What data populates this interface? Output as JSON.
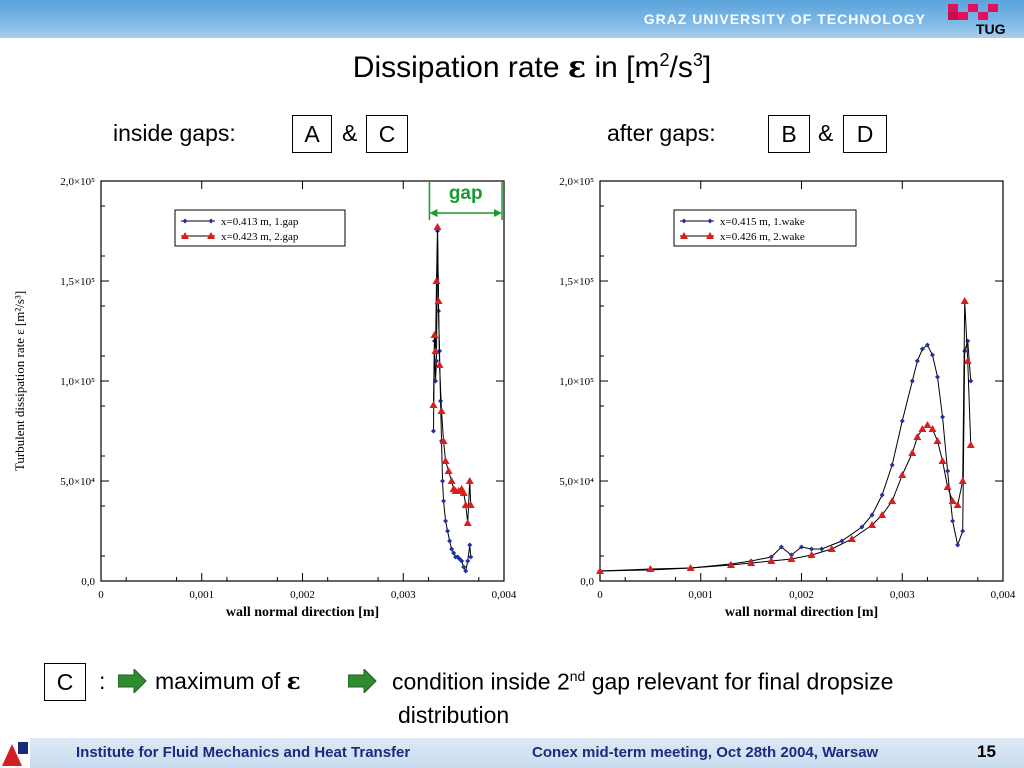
{
  "header": {
    "university": "GRAZ UNIVERSITY OF TECHNOLOGY",
    "logo_text": "TUG"
  },
  "title": {
    "prefix": "Dissipation rate ",
    "symbol": "ε",
    "mid": " in [m",
    "sup1": "2",
    "mid2": "/s",
    "sup2": "3",
    "suffix": "]"
  },
  "labels": {
    "inside_gaps": "inside gaps:",
    "after_gaps": "after gaps:",
    "box_a": "A",
    "box_b": "B",
    "box_c": "C",
    "box_d": "D",
    "amp": "&",
    "gap_annotation": "gap"
  },
  "colors": {
    "header": "#5aa3dc",
    "series_blue": "#1f2fa8",
    "series_red": "#dd1c1c",
    "gap_green": "#1a9a2e",
    "arrow_green": "#2e8b2e",
    "footer_text": "#1a2a7c"
  },
  "chart_data": [
    {
      "type": "line",
      "title": "",
      "xlabel": "wall normal direction [m]",
      "ylabel": "Turbulent dissipation rate  ε  [m²/s³]",
      "xlim": [
        0,
        0.004
      ],
      "ylim": [
        0,
        200000
      ],
      "xticks": [
        "0",
        "0,001",
        "0,002",
        "0,003",
        "0,004"
      ],
      "yticks": [
        "0,0",
        "5,0×10⁴",
        "1,0×10⁵",
        "1,5×10⁵",
        "2,0×10⁵"
      ],
      "legend_position": "top-left",
      "series": [
        {
          "name": "x=0.413 m, 1.gap",
          "color": "#1f2fa8",
          "marker": "diamond",
          "x": [
            0.0033,
            0.00331,
            0.00332,
            0.00333,
            0.00334,
            0.00335,
            0.00336,
            0.00337,
            0.00338,
            0.00339,
            0.0034,
            0.00342,
            0.00344,
            0.00346,
            0.00348,
            0.0035,
            0.00352,
            0.00354,
            0.00356,
            0.00358,
            0.0036,
            0.00362,
            0.00364,
            0.00366,
            0.00367
          ],
          "y": [
            75000,
            120000,
            100000,
            110000,
            175000,
            135000,
            115000,
            90000,
            70000,
            50000,
            40000,
            30000,
            25000,
            20000,
            16000,
            14000,
            12000,
            12000,
            11000,
            10000,
            7000,
            5000,
            10000,
            18000,
            12000
          ]
        },
        {
          "name": "x=0.423 m, 2.gap",
          "color": "#dd1c1c",
          "marker": "triangle",
          "x": [
            0.0033,
            0.00331,
            0.00332,
            0.00333,
            0.00334,
            0.00335,
            0.00336,
            0.00338,
            0.0034,
            0.00342,
            0.00345,
            0.00348,
            0.0035,
            0.00352,
            0.00355,
            0.00358,
            0.0036,
            0.00362,
            0.00364,
            0.00366,
            0.00367
          ],
          "y": [
            88000,
            123000,
            115000,
            150000,
            177000,
            140000,
            108000,
            85000,
            70000,
            60000,
            55000,
            50000,
            46000,
            45000,
            45000,
            46000,
            44000,
            38000,
            29000,
            50000,
            38000
          ]
        }
      ]
    },
    {
      "type": "line",
      "title": "",
      "xlabel": "wall normal direction [m]",
      "ylabel": "",
      "xlim": [
        0,
        0.004
      ],
      "ylim": [
        0,
        200000
      ],
      "xticks": [
        "0",
        "0,001",
        "0,002",
        "0,003",
        "0,004"
      ],
      "yticks": [
        "0,0",
        "5,0×10⁴",
        "1,0×10⁵",
        "1,5×10⁵",
        "2,0×10⁵"
      ],
      "legend_position": "top-center",
      "series": [
        {
          "name": "x=0.415 m, 1.wake",
          "color": "#1f2fa8",
          "marker": "diamond",
          "x": [
            0,
            0.0005,
            0.0009,
            0.0013,
            0.0015,
            0.0017,
            0.0018,
            0.0019,
            0.002,
            0.0021,
            0.0022,
            0.0024,
            0.0026,
            0.0027,
            0.0028,
            0.0029,
            0.003,
            0.0031,
            0.00315,
            0.0032,
            0.00325,
            0.0033,
            0.00335,
            0.0034,
            0.00345,
            0.0035,
            0.00355,
            0.0036,
            0.00362,
            0.00365,
            0.00368
          ],
          "y": [
            5000,
            5500,
            6500,
            8500,
            10000,
            12000,
            17000,
            13000,
            17000,
            16000,
            16000,
            20000,
            27000,
            33000,
            43000,
            58000,
            80000,
            100000,
            110000,
            116000,
            118000,
            113000,
            102000,
            82000,
            55000,
            30000,
            18000,
            25000,
            115000,
            120000,
            100000
          ]
        },
        {
          "name": "x=0.426 m, 2.wake",
          "color": "#dd1c1c",
          "marker": "triangle",
          "x": [
            0,
            0.0005,
            0.0009,
            0.0013,
            0.0015,
            0.0017,
            0.0019,
            0.0021,
            0.0023,
            0.0025,
            0.0027,
            0.0028,
            0.0029,
            0.003,
            0.0031,
            0.00315,
            0.0032,
            0.00325,
            0.0033,
            0.00335,
            0.0034,
            0.00345,
            0.0035,
            0.00355,
            0.0036,
            0.00362,
            0.00365,
            0.00368
          ],
          "y": [
            5000,
            6000,
            6500,
            8000,
            9000,
            10000,
            11000,
            13000,
            16000,
            21000,
            28000,
            33000,
            40000,
            53000,
            64000,
            72000,
            76000,
            78000,
            76000,
            70000,
            60000,
            47000,
            40000,
            38000,
            50000,
            140000,
            110000,
            68000
          ]
        }
      ]
    }
  ],
  "bottom": {
    "box": "C",
    "colon": ":",
    "maximum_of": "maximum of ",
    "epsilon": "ε",
    "condition_pre": "condition inside 2",
    "condition_sup": "nd",
    "condition_post": " gap relevant for final dropsize",
    "line2": "distribution"
  },
  "footer": {
    "institute": "Institute for Fluid Mechanics and Heat Transfer",
    "meeting": "Conex mid-term meeting, Oct 28th 2004, Warsaw",
    "page": "15"
  }
}
